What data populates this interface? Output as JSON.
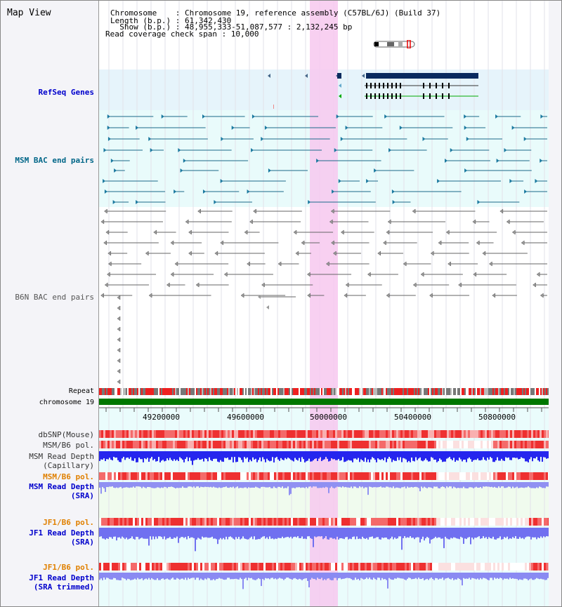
{
  "header": {
    "title": "Map View",
    "info_lines": [
      "Chromosome    : Chromosome 19, reference assembly (C57BL/6J) (Build 37)",
      "Length (b.p.) : 61,342,430",
      "  Show (b.p.) : 48,955,333-51,087,577 : 2,132,245 bp",
      "Read coverage check span : 10,000"
    ]
  },
  "tracks": {
    "refseq": "RefSeq Genes",
    "msm_bac": "MSM BAC end pairs",
    "b6n_bac": "B6N BAC end pairs",
    "repeat": "Repeat",
    "chromosome": "chromosome 19",
    "dbsnp": "dbSNP(Mouse)",
    "msm_b6_pol": "MSM/B6 pol.",
    "msm_read_depth_cap_1": "MSM Read Depth",
    "msm_read_depth_cap_2": "(Capillary)",
    "msm_b6_pol_2": "MSM/B6 pol.",
    "msm_read_depth_sra_1": "MSM Read Depth",
    "msm_read_depth_sra_2": "(SRA)",
    "jf1_b6_pol_1": "JF1/B6 pol.",
    "jf1_read_depth_sra_1": "JF1 Read Depth",
    "jf1_read_depth_sra_2": "(SRA)",
    "jf1_b6_pol_2": "JF1/B6 pol.",
    "jf1_read_depth_trim_1": "JF1 Read Depth",
    "jf1_read_depth_trim_2": "(SRA trimmed)"
  },
  "axis": {
    "ticks": [
      "49200000",
      "49600000",
      "50000000",
      "50400000",
      "50800000"
    ]
  },
  "colors": {
    "refseq_label": "#0000cc",
    "msm_label": "#006688",
    "b6n_label": "#555555",
    "pol_label": "#e08000",
    "depth_label": "#0000cc",
    "highlight": "#f7c8ef",
    "chromosome_bar": "#007700"
  }
}
